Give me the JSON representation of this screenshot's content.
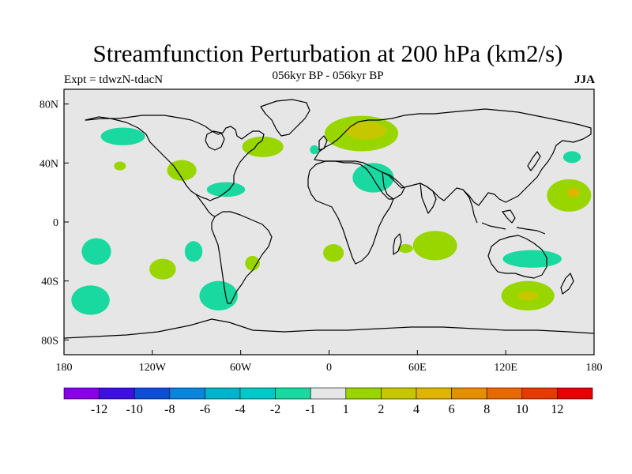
{
  "title": "Streamfunction Perturbation at 200 hPa (km2/s)",
  "subtitle": "056kyr BP - 056kyr BP",
  "left_label": "Expt = tdwzN-tdacN",
  "right_label": "JJA",
  "lat_ticks": [
    "80N",
    "40N",
    "0",
    "40S",
    "80S"
  ],
  "lon_ticks": [
    "180",
    "120W",
    "60W",
    "0",
    "60E",
    "120E",
    "180"
  ],
  "colors": {
    "ocean": "#e6e6e6",
    "neg_fill": "#19d9a0",
    "pos1_fill": "#99d600",
    "pos2_fill": "#c7c700",
    "pos3_fill": "#e0b400"
  },
  "colorbar": {
    "colors": [
      "#8a00e6",
      "#3d0fe0",
      "#0a4fd4",
      "#0a85d9",
      "#00b3cf",
      "#00c9c9",
      "#19d9a0",
      "#e6e6e6",
      "#99d600",
      "#c7c700",
      "#e0b400",
      "#e38f00",
      "#e56b00",
      "#e63a00",
      "#e60000"
    ],
    "labels": [
      "-12",
      "-10",
      "-8",
      "-6",
      "-4",
      "-2",
      "-1",
      "1",
      "2",
      "4",
      "6",
      "8",
      "10",
      "12"
    ]
  },
  "anomalies": [
    {
      "name": "nw-pacific-neg",
      "lon": -140,
      "lat": 58,
      "rx": 15,
      "ry": 6,
      "level": "neg"
    },
    {
      "name": "ne-pacific-pos",
      "lon": -142,
      "lat": 38,
      "rx": 4,
      "ry": 3,
      "level": "pos1"
    },
    {
      "name": "n-america-pos",
      "lon": -100,
      "lat": 35,
      "rx": 10,
      "ry": 7,
      "level": "pos1"
    },
    {
      "name": "n-atlantic-pos",
      "lon": -45,
      "lat": 51,
      "rx": 14,
      "ry": 7,
      "level": "pos1"
    },
    {
      "name": "caribbean-neg",
      "lon": -70,
      "lat": 22,
      "rx": 13,
      "ry": 5,
      "level": "neg"
    },
    {
      "name": "iceland-neg",
      "lon": -10,
      "lat": 49,
      "rx": 3,
      "ry": 3,
      "level": "neg"
    },
    {
      "name": "europe-pos",
      "lon": 22,
      "lat": 60,
      "rx": 25,
      "ry": 12,
      "level": "pos1"
    },
    {
      "name": "scandinavia-core",
      "lon": 25,
      "lat": 62,
      "rx": 14,
      "ry": 6,
      "level": "pos2"
    },
    {
      "name": "mideast-neg",
      "lon": 30,
      "lat": 30,
      "rx": 14,
      "ry": 10,
      "level": "neg"
    },
    {
      "name": "nw-pacific-east-neg",
      "lon": 165,
      "lat": 44,
      "rx": 6,
      "ry": 4,
      "level": "neg"
    },
    {
      "name": "w-pacific-pos",
      "lon": 163,
      "lat": 18,
      "rx": 15,
      "ry": 11,
      "level": "pos1"
    },
    {
      "name": "w-pacific-core",
      "lon": 166,
      "lat": 20,
      "rx": 4,
      "ry": 3,
      "level": "pos3"
    },
    {
      "name": "se-pacific-neg",
      "lon": -158,
      "lat": -20,
      "rx": 10,
      "ry": 9,
      "level": "neg"
    },
    {
      "name": "e-pacific-neg",
      "lon": -92,
      "lat": -20,
      "rx": 6,
      "ry": 7,
      "level": "neg"
    },
    {
      "name": "s-pacific-pos",
      "lon": -113,
      "lat": -32,
      "rx": 9,
      "ry": 7,
      "level": "pos1"
    },
    {
      "name": "s-america-pos",
      "lon": -52,
      "lat": -28,
      "rx": 5,
      "ry": 5,
      "level": "pos1"
    },
    {
      "name": "s-atlantic-pos",
      "lon": 3,
      "lat": -21,
      "rx": 7,
      "ry": 6,
      "level": "pos1"
    },
    {
      "name": "madagascar-pos",
      "lon": 52,
      "lat": -18,
      "rx": 5,
      "ry": 3,
      "level": "pos1"
    },
    {
      "name": "indian-pos",
      "lon": 72,
      "lat": -16,
      "rx": 15,
      "ry": 10,
      "level": "pos1"
    },
    {
      "name": "australia-neg",
      "lon": 138,
      "lat": -25,
      "rx": 20,
      "ry": 6,
      "level": "neg"
    },
    {
      "name": "southern-pacific-neg",
      "lon": -162,
      "lat": -53,
      "rx": 13,
      "ry": 10,
      "level": "neg"
    },
    {
      "name": "s-chile-neg",
      "lon": -75,
      "lat": -50,
      "rx": 13,
      "ry": 10,
      "level": "neg"
    },
    {
      "name": "s-indian-pos",
      "lon": 135,
      "lat": -50,
      "rx": 18,
      "ry": 10,
      "level": "pos1"
    },
    {
      "name": "s-indian-core",
      "lon": 135,
      "lat": -50,
      "rx": 7,
      "ry": 3,
      "level": "pos2"
    }
  ]
}
